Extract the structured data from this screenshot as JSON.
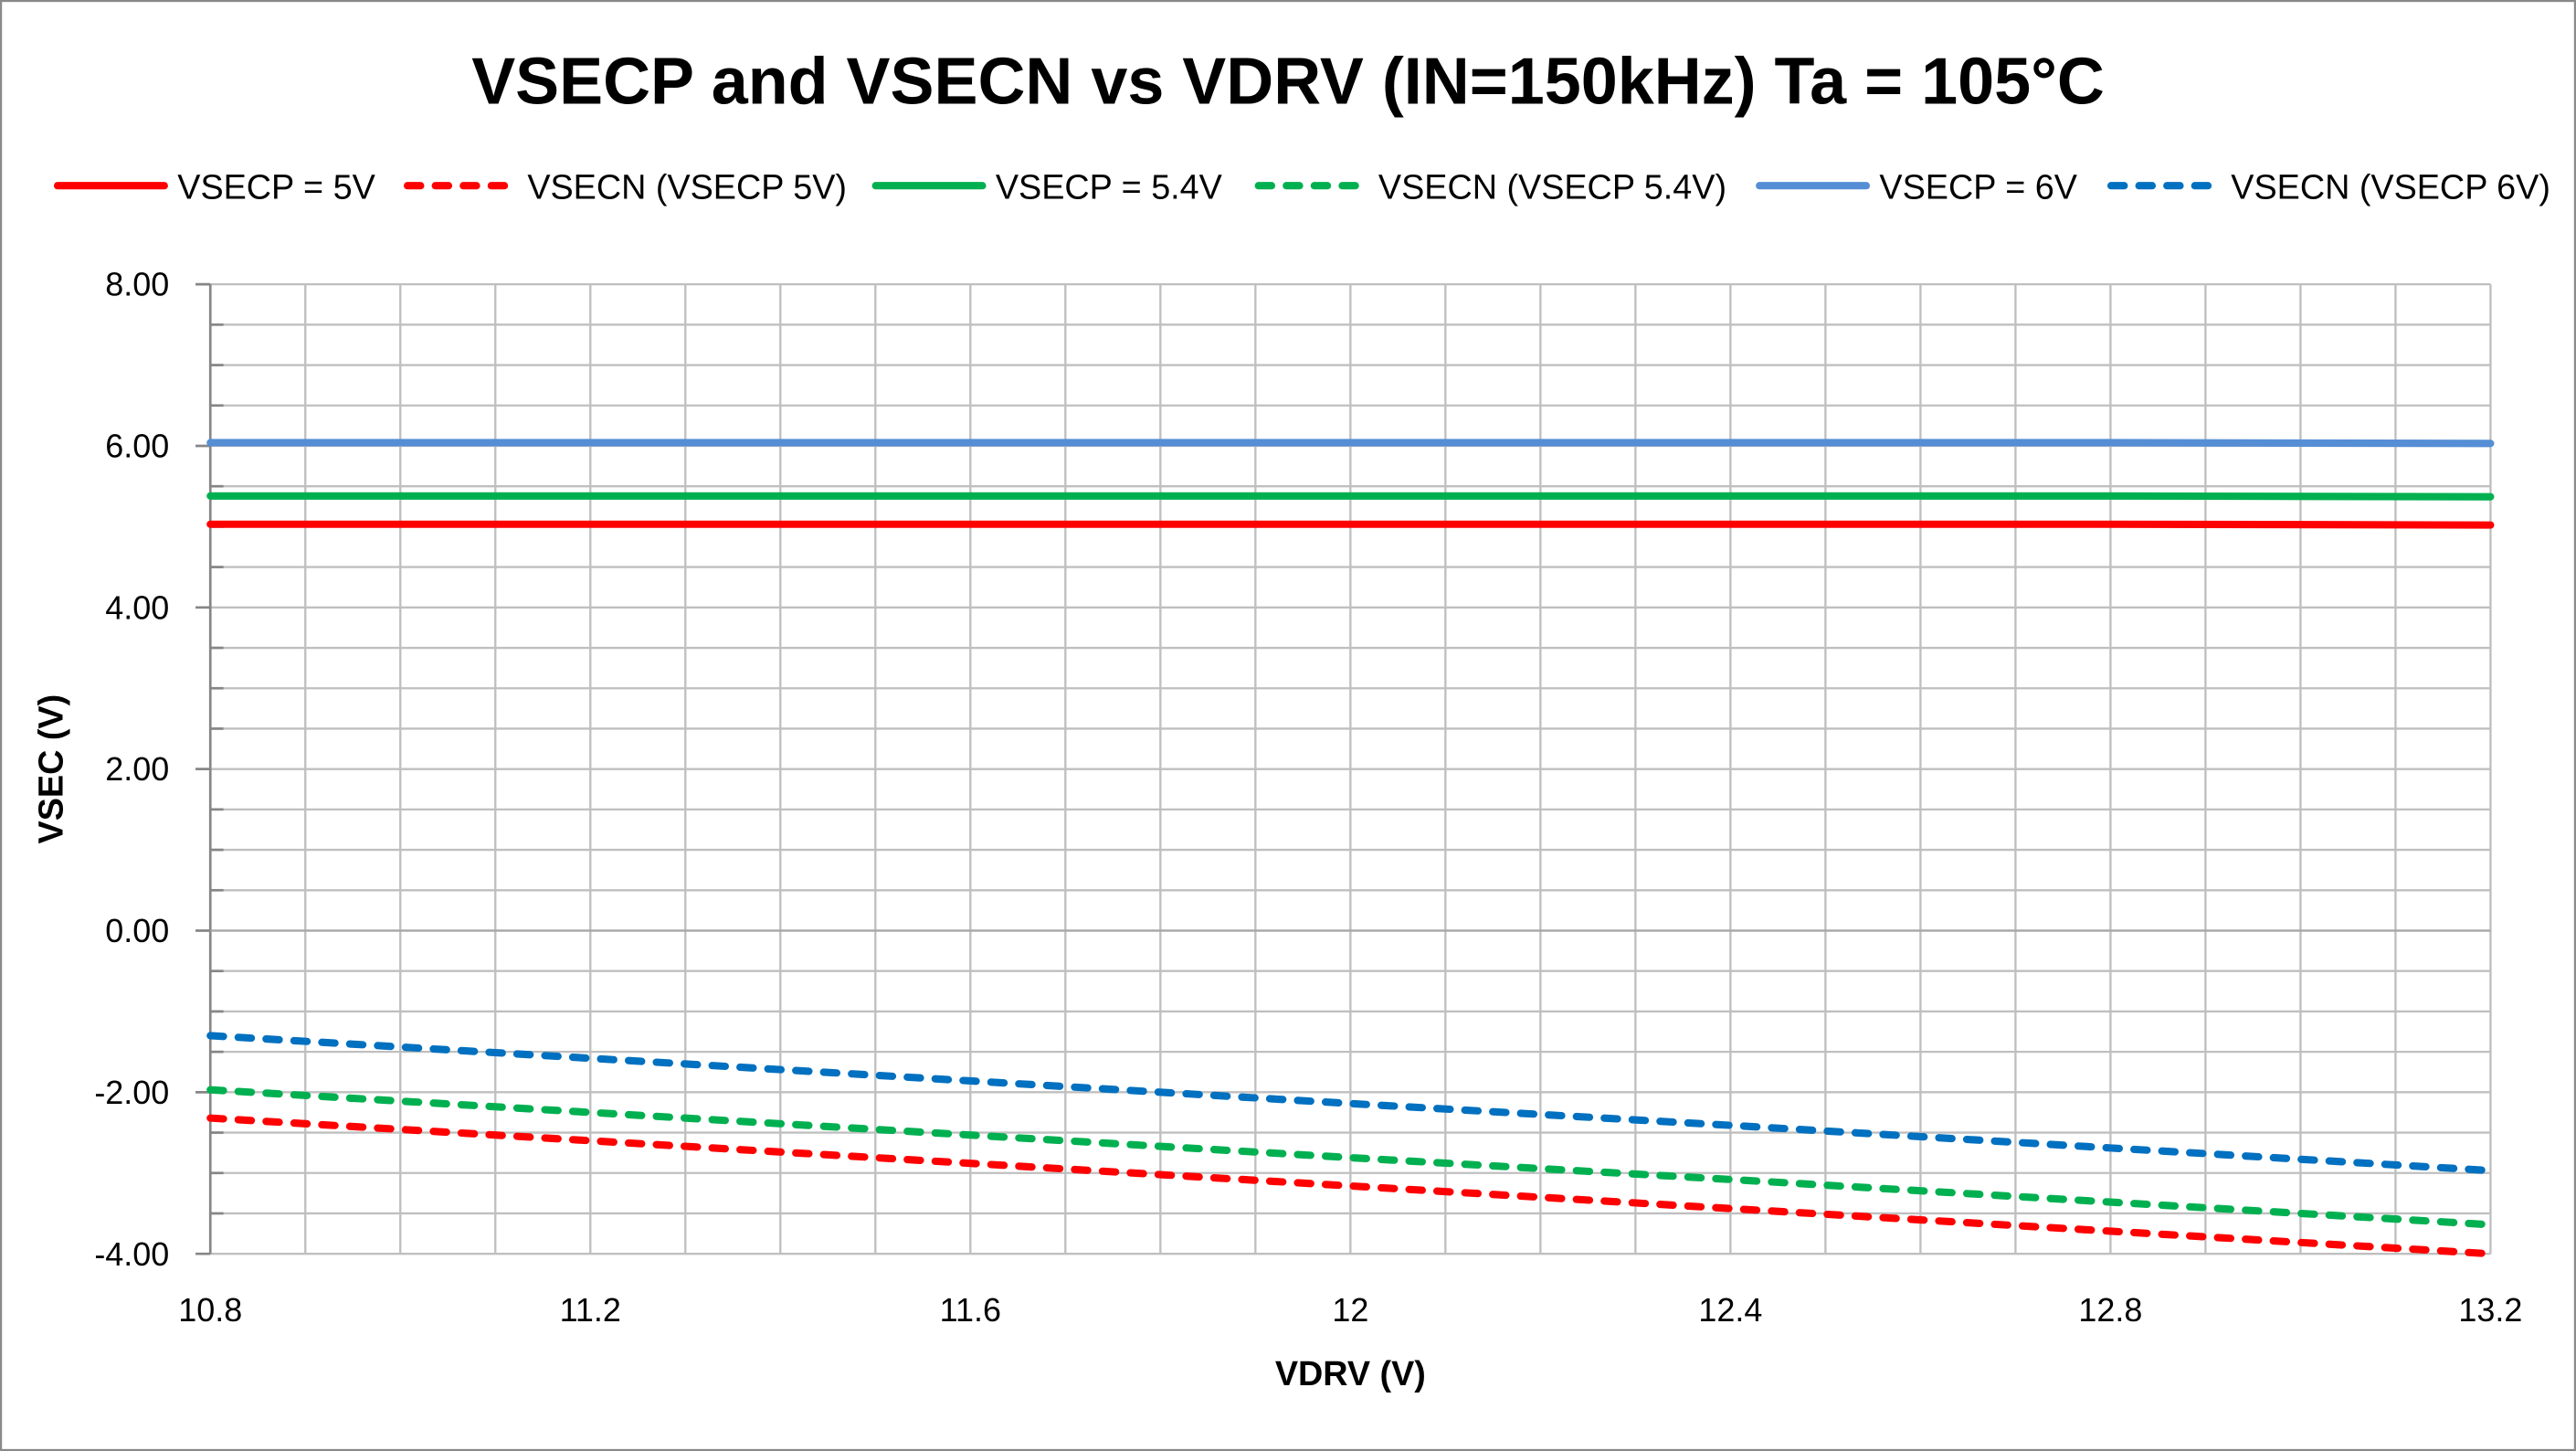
{
  "chart_data": {
    "type": "line",
    "title": "VSECP and VSECN vs VDRV (IN=150kHz) Ta = 105°C",
    "xlabel": "VDRV (V)",
    "ylabel": "VSEC (V)",
    "xlim": [
      10.8,
      13.2
    ],
    "ylim": [
      -4,
      8
    ],
    "x_ticks": [
      "10.8",
      "11.2",
      "11.6",
      "12",
      "12.4",
      "12.8",
      "13.2"
    ],
    "y_ticks": [
      "8.00",
      "6.00",
      "4.00",
      "2.00",
      "0.00",
      "-2.00",
      "-4.00"
    ],
    "grid": true,
    "legend_position": "top",
    "x": [
      10.8,
      11.2,
      11.6,
      12.0,
      12.4,
      12.8,
      13.2
    ],
    "series": [
      {
        "name": "VSECP = 5V",
        "color": "#FF0000",
        "style": "solid",
        "values": [
          5.03,
          5.03,
          5.03,
          5.03,
          5.03,
          5.03,
          5.02
        ]
      },
      {
        "name": "VSECN (VSECP 5V)",
        "color": "#FF0000",
        "style": "dashed",
        "values": [
          -2.32,
          -2.6,
          -2.88,
          -3.16,
          -3.44,
          -3.72,
          -4.0
        ]
      },
      {
        "name": "VSECP = 5.4V",
        "color": "#00B050",
        "style": "solid",
        "values": [
          5.38,
          5.38,
          5.38,
          5.38,
          5.38,
          5.38,
          5.37
        ]
      },
      {
        "name": "VSECN (VSECP 5.4V)",
        "color": "#00B050",
        "style": "dashed",
        "values": [
          -1.97,
          -2.25,
          -2.53,
          -2.81,
          -3.08,
          -3.36,
          -3.64
        ]
      },
      {
        "name": "VSECP = 6V",
        "color": "#558ED5",
        "style": "solid",
        "values": [
          6.04,
          6.04,
          6.04,
          6.04,
          6.04,
          6.04,
          6.03
        ]
      },
      {
        "name": "VSECN (VSECP 6V)",
        "color": "#0070C0",
        "style": "dashed",
        "values": [
          -1.3,
          -1.58,
          -1.86,
          -2.14,
          -2.41,
          -2.69,
          -2.97
        ]
      }
    ]
  }
}
